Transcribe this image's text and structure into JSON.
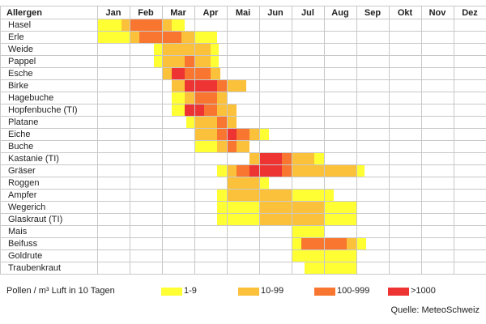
{
  "chart_data": {
    "type": "heatmap",
    "title": "",
    "header_label": "Allergen",
    "months": [
      "Jan",
      "Feb",
      "Mar",
      "Apr",
      "Mai",
      "Jun",
      "Jul",
      "Aug",
      "Sep",
      "Okt",
      "Nov",
      "Dez"
    ],
    "levels": [
      {
        "label": "1-9",
        "color": "#ffff33"
      },
      {
        "label": "10-99",
        "color": "#fcc13a"
      },
      {
        "label": "100-999",
        "color": "#f8762f"
      },
      {
        "label": ">1000",
        "color": "#ee3333"
      }
    ],
    "rows": [
      {
        "name": "Hasel",
        "cells": [
          [
            0.0,
            0.75,
            1
          ],
          [
            0.75,
            1.0,
            2
          ],
          [
            1.0,
            2.0,
            3
          ],
          [
            2.0,
            2.3,
            2
          ],
          [
            2.3,
            2.7,
            1
          ]
        ]
      },
      {
        "name": "Erle",
        "cells": [
          [
            0.0,
            1.0,
            1
          ],
          [
            1.0,
            1.3,
            2
          ],
          [
            1.3,
            2.6,
            3
          ],
          [
            2.6,
            3.0,
            2
          ],
          [
            3.0,
            3.7,
            1
          ]
        ]
      },
      {
        "name": "Weide",
        "cells": [
          [
            1.75,
            2.0,
            1
          ],
          [
            2.0,
            3.5,
            2
          ],
          [
            3.5,
            3.75,
            1
          ]
        ]
      },
      {
        "name": "Pappel",
        "cells": [
          [
            1.75,
            2.0,
            1
          ],
          [
            2.0,
            2.7,
            2
          ],
          [
            2.7,
            3.0,
            3
          ],
          [
            3.0,
            3.5,
            2
          ],
          [
            3.5,
            3.75,
            1
          ]
        ]
      },
      {
        "name": "Esche",
        "cells": [
          [
            2.0,
            2.3,
            2
          ],
          [
            2.3,
            2.7,
            4
          ],
          [
            2.7,
            3.5,
            3
          ],
          [
            3.5,
            3.8,
            2
          ]
        ]
      },
      {
        "name": "Birke",
        "cells": [
          [
            2.3,
            2.7,
            2
          ],
          [
            2.7,
            3.7,
            4
          ],
          [
            3.7,
            4.0,
            3
          ],
          [
            4.0,
            4.6,
            2
          ]
        ]
      },
      {
        "name": "Hagebuche",
        "cells": [
          [
            2.3,
            2.7,
            1
          ],
          [
            2.7,
            3.0,
            2
          ],
          [
            3.0,
            3.7,
            3
          ],
          [
            3.7,
            4.0,
            2
          ]
        ]
      },
      {
        "name": "Hopfenbuche (TI)",
        "cells": [
          [
            2.3,
            2.7,
            1
          ],
          [
            2.7,
            3.3,
            4
          ],
          [
            3.3,
            3.7,
            3
          ],
          [
            3.7,
            4.3,
            2
          ]
        ]
      },
      {
        "name": "Platane",
        "cells": [
          [
            2.75,
            3.0,
            1
          ],
          [
            3.0,
            3.7,
            2
          ],
          [
            3.7,
            4.0,
            3
          ],
          [
            4.0,
            4.3,
            2
          ]
        ]
      },
      {
        "name": "Eiche",
        "cells": [
          [
            3.0,
            3.7,
            2
          ],
          [
            3.7,
            4.0,
            3
          ],
          [
            4.0,
            4.3,
            4
          ],
          [
            4.3,
            4.7,
            3
          ],
          [
            4.7,
            5.0,
            2
          ],
          [
            5.0,
            5.3,
            1
          ]
        ]
      },
      {
        "name": "Buche",
        "cells": [
          [
            3.0,
            3.7,
            1
          ],
          [
            3.7,
            4.0,
            2
          ],
          [
            4.0,
            4.3,
            3
          ],
          [
            4.3,
            4.7,
            2
          ]
        ]
      },
      {
        "name": "Kastanie (TI)",
        "cells": [
          [
            4.7,
            5.0,
            2
          ],
          [
            5.0,
            5.7,
            4
          ],
          [
            5.7,
            6.0,
            3
          ],
          [
            6.0,
            6.7,
            2
          ],
          [
            6.7,
            7.0,
            1
          ]
        ]
      },
      {
        "name": "Gräser",
        "cells": [
          [
            3.7,
            4.0,
            1
          ],
          [
            4.0,
            4.3,
            2
          ],
          [
            4.3,
            4.7,
            3
          ],
          [
            4.7,
            5.7,
            4
          ],
          [
            5.7,
            6.0,
            3
          ],
          [
            6.0,
            7.0,
            2
          ],
          [
            7.0,
            8.0,
            2
          ],
          [
            8.0,
            8.25,
            1
          ]
        ]
      },
      {
        "name": "Roggen",
        "cells": [
          [
            4.0,
            4.6,
            2
          ],
          [
            4.6,
            5.0,
            2
          ],
          [
            5.0,
            5.3,
            1
          ]
        ]
      },
      {
        "name": "Ampfer",
        "cells": [
          [
            3.7,
            4.0,
            1
          ],
          [
            4.0,
            6.0,
            2
          ],
          [
            6.0,
            7.0,
            1
          ],
          [
            7.0,
            7.3,
            1
          ]
        ]
      },
      {
        "name": "Wegerich",
        "cells": [
          [
            3.7,
            4.0,
            1
          ],
          [
            4.0,
            5.0,
            1
          ],
          [
            5.0,
            7.0,
            2
          ],
          [
            7.0,
            8.0,
            1
          ]
        ]
      },
      {
        "name": "Glaskraut (TI)",
        "cells": [
          [
            3.7,
            4.0,
            1
          ],
          [
            4.0,
            5.0,
            1
          ],
          [
            5.0,
            7.0,
            2
          ],
          [
            7.0,
            8.0,
            1
          ]
        ]
      },
      {
        "name": "Mais",
        "cells": [
          [
            6.0,
            7.0,
            1
          ]
        ]
      },
      {
        "name": "Beifuss",
        "cells": [
          [
            6.0,
            6.3,
            1
          ],
          [
            6.3,
            7.7,
            3
          ],
          [
            7.7,
            8.0,
            2
          ],
          [
            8.0,
            8.3,
            1
          ]
        ]
      },
      {
        "name": "Goldrute",
        "cells": [
          [
            6.0,
            8.0,
            1
          ]
        ]
      },
      {
        "name": "Traubenkraut",
        "cells": [
          [
            6.4,
            8.0,
            1
          ]
        ]
      }
    ],
    "legend_title": "Pollen / m³ Luft in 10 Tagen",
    "source": "Quelle: MeteoSchweiz",
    "grid": true
  }
}
